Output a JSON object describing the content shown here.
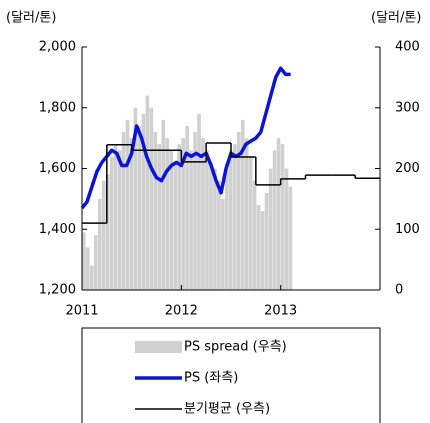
{
  "chart_data": {
    "type": "line",
    "y_unit_left": "(달러/톤)",
    "y_unit_right": "(달러/톤)",
    "xlim": [
      2011,
      2014
    ],
    "xticks": [
      2011,
      2012,
      2013
    ],
    "ylim": [
      1200,
      2000
    ],
    "yticks": [
      {
        "value": 1200,
        "label": "1,200"
      },
      {
        "value": 1400,
        "label": "1,400"
      },
      {
        "value": 1600,
        "label": "1,600"
      },
      {
        "value": 1800,
        "label": "1,800"
      },
      {
        "value": 2000,
        "label": "2,000"
      }
    ],
    "y2lim": [
      0,
      400
    ],
    "y2ticks": [
      0,
      100,
      200,
      300,
      400
    ],
    "series": [
      {
        "name": "PS spread (우측)",
        "type": "bar",
        "axis": "y2",
        "color": "#d0d0d0",
        "x": [
          2011,
          2011.04,
          2011.08,
          2011.12,
          2011.16,
          2011.2,
          2011.24,
          2011.28,
          2011.32,
          2011.36,
          2011.4,
          2011.44,
          2011.48,
          2011.52,
          2011.56,
          2011.6,
          2011.64,
          2011.68,
          2011.72,
          2011.76,
          2011.8,
          2011.84,
          2011.88,
          2011.92,
          2011.96,
          2012,
          2012.04,
          2012.08,
          2012.12,
          2012.16,
          2012.2,
          2012.24,
          2012.28,
          2012.32,
          2012.36,
          2012.4,
          2012.44,
          2012.48,
          2012.52,
          2012.56,
          2012.6,
          2012.64,
          2012.68,
          2012.72,
          2012.76,
          2012.8,
          2012.84,
          2012.88,
          2012.92,
          2012.96,
          2013,
          2013.04,
          2013.08
        ],
        "values": [
          95,
          70,
          40,
          90,
          150,
          180,
          190,
          220,
          240,
          230,
          260,
          280,
          250,
          300,
          270,
          290,
          320,
          300,
          260,
          240,
          280,
          250,
          230,
          210,
          240,
          250,
          270,
          230,
          260,
          290,
          250,
          230,
          210,
          200,
          180,
          150,
          210,
          230,
          240,
          260,
          280,
          250,
          220,
          180,
          140,
          130,
          160,
          200,
          230,
          250,
          240,
          200,
          170
        ]
      },
      {
        "name": "PS (좌측)",
        "type": "line",
        "color": "#0a14d6",
        "x": [
          2011,
          2011.05,
          2011.1,
          2011.15,
          2011.2,
          2011.25,
          2011.3,
          2011.35,
          2011.4,
          2011.45,
          2011.5,
          2011.55,
          2011.6,
          2011.65,
          2011.7,
          2011.75,
          2011.8,
          2011.85,
          2011.9,
          2011.95,
          2012,
          2012.05,
          2012.1,
          2012.15,
          2012.2,
          2012.25,
          2012.3,
          2012.35,
          2012.4,
          2012.45,
          2012.5,
          2012.55,
          2012.6,
          2012.65,
          2012.7,
          2012.75,
          2012.8,
          2012.85,
          2012.9,
          2012.95,
          2013,
          2013.05,
          2013.1
        ],
        "values": [
          1470,
          1490,
          1540,
          1590,
          1620,
          1640,
          1660,
          1650,
          1610,
          1610,
          1650,
          1740,
          1700,
          1640,
          1600,
          1570,
          1560,
          1590,
          1610,
          1620,
          1610,
          1650,
          1640,
          1650,
          1640,
          1650,
          1610,
          1560,
          1520,
          1600,
          1650,
          1640,
          1650,
          1680,
          1690,
          1700,
          1720,
          1780,
          1840,
          1900,
          1930,
          1910,
          1910
        ]
      },
      {
        "name": "분기평균 (우측)",
        "type": "step",
        "axis": "y2",
        "color": "#000000",
        "x": [
          2011,
          2011.25,
          2011.5,
          2011.75,
          2012,
          2012.25,
          2012.5,
          2012.75,
          2013,
          2013.25,
          2013.5,
          2013.75
        ],
        "values": [
          110,
          239,
          230,
          230,
          211,
          242,
          219,
          173,
          183,
          189,
          189,
          184
        ]
      }
    ]
  }
}
